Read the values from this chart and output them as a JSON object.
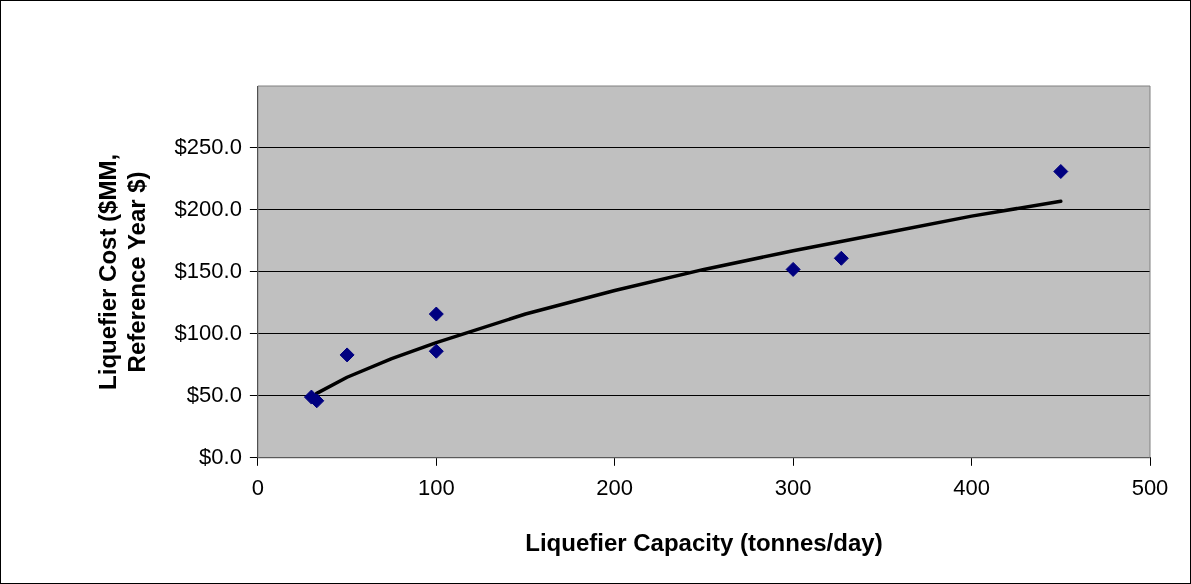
{
  "chart_data": {
    "type": "scatter",
    "xlabel": "Liquefier Capacity (tonnes/day)",
    "ylabel": "Liquefier Cost ($MM, Reference Year $)",
    "xlim": [
      0,
      500
    ],
    "xticks": [
      0,
      100,
      200,
      300,
      400,
      500
    ],
    "ylim": [
      0,
      300
    ],
    "yticks": [
      {
        "value": 0,
        "label": "$0.0"
      },
      {
        "value": 50,
        "label": "$50.0"
      },
      {
        "value": 100,
        "label": "$100.0"
      },
      {
        "value": 150,
        "label": "$150.0"
      },
      {
        "value": 200,
        "label": "$200.0"
      },
      {
        "value": 250,
        "label": "$250.0"
      }
    ],
    "grid": "y",
    "legend": false,
    "series": [
      {
        "type": "scatter",
        "color": "#000080",
        "marker": "diamond",
        "x": [
          30,
          33,
          50,
          100,
          100,
          300,
          327,
          450
        ],
        "values": [
          49,
          46,
          83,
          116,
          86,
          152,
          161,
          231
        ]
      },
      {
        "type": "line",
        "color": "#000000",
        "marker": "none",
        "line_style": "solid",
        "x": [
          33,
          50,
          75,
          100,
          150,
          200,
          250,
          300,
          350,
          400,
          450
        ],
        "values": [
          52,
          65,
          80,
          93,
          116,
          135,
          152,
          167,
          181,
          195,
          207
        ]
      }
    ]
  }
}
